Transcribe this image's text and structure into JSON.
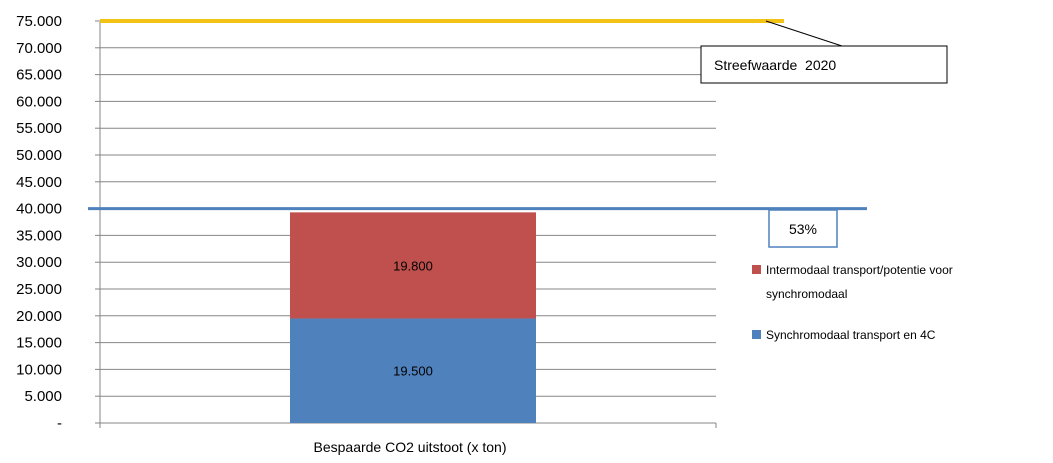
{
  "chart_data": {
    "type": "bar",
    "stacked": true,
    "categories": [
      "Bespaarde CO2 uitstoot (x ton)"
    ],
    "series": [
      {
        "name": "Synchromodaal transport en 4C",
        "values": [
          19500
        ],
        "color": "#4f81bd",
        "value_label": "19.500"
      },
      {
        "name": "Intermodaal transport/potentie voor synchromodaal",
        "values": [
          19800
        ],
        "color": "#c0504d",
        "value_label": "19.800"
      }
    ],
    "legend_lines": [
      [
        "Intermodaal transport/potentie voor",
        "synchromodaal"
      ],
      [
        "Synchromodaal transport en 4C"
      ]
    ],
    "reference_lines": [
      {
        "value": 75000,
        "color": "#f2c314"
      },
      {
        "value": 40000,
        "color": "#4f81bd"
      }
    ],
    "annotations": [
      {
        "text": "Streefwaarde  2020"
      },
      {
        "text": "53%"
      }
    ],
    "y_ticks": [
      0,
      5000,
      10000,
      15000,
      20000,
      25000,
      30000,
      35000,
      40000,
      45000,
      50000,
      55000,
      60000,
      65000,
      70000,
      75000
    ],
    "y_tick_labels": [
      "-",
      "5.000",
      "10.000",
      "15.000",
      "20.000",
      "25.000",
      "30.000",
      "35.000",
      "40.000",
      "45.000",
      "50.000",
      "55.000",
      "60.000",
      "65.000",
      "70.000",
      "75.000"
    ],
    "ylim": [
      0,
      75000
    ],
    "grid": true,
    "legend_position": "right",
    "title": "",
    "xlabel": "",
    "ylabel": ""
  }
}
